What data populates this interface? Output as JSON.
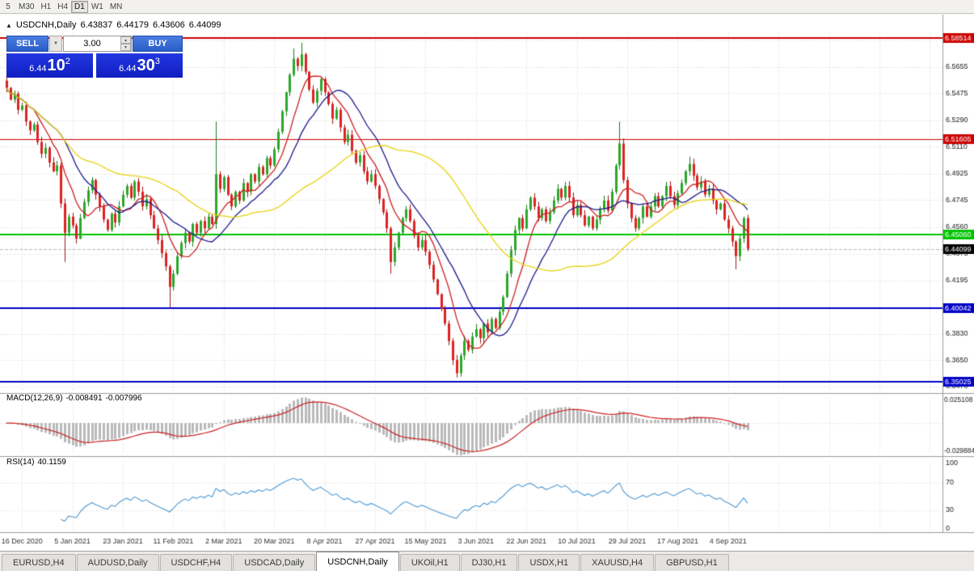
{
  "toolbar": {
    "periods": [
      "5",
      "M30",
      "H1",
      "H4",
      "D1",
      "W1",
      "MN"
    ],
    "active": "D1"
  },
  "chart_header": {
    "collapse_icon": "▲",
    "symbol": "USDCNH,Daily",
    "open": "6.43837",
    "high": "6.44179",
    "low": "6.43606",
    "close": "6.44099"
  },
  "trade_panel": {
    "sell_label": "SELL",
    "buy_label": "BUY",
    "volume": "3.00",
    "dropdown_icon": "▼",
    "spin_up_icon": "▲",
    "spin_down_icon": "▼",
    "sell_price": {
      "base": "6.44",
      "big": "10",
      "sup": "2"
    },
    "buy_price": {
      "base": "6.44",
      "big": "30",
      "sup": "3"
    }
  },
  "indicator_headers": {
    "macd": {
      "name": "MACD(12,26,9)",
      "main": "-0.008491",
      "signal": "-0.007996"
    },
    "rsi": {
      "name": "RSI(14)",
      "value": "40.1159"
    }
  },
  "tabs": {
    "items": [
      "EURUSD,H4",
      "AUDUSD,Daily",
      "USDCHF,H4",
      "USDCAD,Daily",
      "USDCNH,Daily",
      "UKOil,H1",
      "DJ30,H1",
      "USDX,H1",
      "XAUUSD,H4",
      "GBPUSD,H1"
    ],
    "active_index": 4
  },
  "chart_data": {
    "type": "candlestick",
    "symbol": "USDCNH",
    "timeframe": "Daily",
    "y_range": [
      6.3435,
      6.589
    ],
    "y_ticks": [
      "6.5835",
      "6.5655",
      "6.5475",
      "6.5290",
      "6.5110",
      "6.4925",
      "6.4745",
      "6.4560",
      "6.4375",
      "6.4195",
      "6.4010",
      "6.3830",
      "6.3650",
      "6.3470"
    ],
    "x_labels": [
      {
        "text": "16 Dec 2020",
        "bar": 4
      },
      {
        "text": "5 Jan 2021",
        "bar": 17
      },
      {
        "text": "23 Jan 2021",
        "bar": 30
      },
      {
        "text": "11 Feb 2021",
        "bar": 43
      },
      {
        "text": "2 Mar 2021",
        "bar": 56
      },
      {
        "text": "20 Mar 2021",
        "bar": 69
      },
      {
        "text": "8 Apr 2021",
        "bar": 82
      },
      {
        "text": "27 Apr 2021",
        "bar": 95
      },
      {
        "text": "15 May 2021",
        "bar": 108
      },
      {
        "text": "3 Jun 2021",
        "bar": 121
      },
      {
        "text": "22 Jun 2021",
        "bar": 134
      },
      {
        "text": "10 Jul 2021",
        "bar": 147
      },
      {
        "text": "29 Jul 2021",
        "bar": 160
      },
      {
        "text": "17 Aug 2021",
        "bar": 173
      },
      {
        "text": "4 Sep 2021",
        "bar": 186
      }
    ],
    "first_open": 6.556,
    "closes": [
      6.551,
      6.543,
      6.547,
      6.536,
      6.539,
      6.528,
      6.522,
      6.526,
      6.514,
      6.506,
      6.51,
      6.5,
      6.494,
      6.498,
      6.472,
      6.452,
      6.463,
      6.457,
      6.448,
      6.462,
      6.473,
      6.481,
      6.488,
      6.478,
      6.47,
      6.461,
      6.454,
      6.465,
      6.459,
      6.47,
      6.478,
      6.484,
      6.476,
      6.487,
      6.48,
      6.47,
      6.475,
      6.464,
      6.455,
      6.447,
      6.438,
      6.429,
      6.415,
      6.424,
      6.436,
      6.445,
      6.452,
      6.446,
      6.458,
      6.452,
      6.46,
      6.455,
      6.463,
      6.458,
      6.492,
      6.482,
      6.49,
      6.478,
      6.47,
      6.48,
      6.474,
      6.486,
      6.48,
      6.492,
      6.487,
      6.497,
      6.492,
      6.503,
      6.498,
      6.509,
      6.521,
      6.535,
      6.548,
      6.56,
      6.571,
      6.566,
      6.574,
      6.562,
      6.55,
      6.541,
      6.549,
      6.557,
      6.548,
      6.54,
      6.53,
      6.536,
      6.524,
      6.514,
      6.519,
      6.508,
      6.5,
      6.505,
      6.494,
      6.487,
      6.492,
      6.484,
      6.475,
      6.466,
      6.455,
      6.432,
      6.442,
      6.452,
      6.462,
      6.468,
      6.46,
      6.45,
      6.442,
      6.447,
      6.439,
      6.43,
      6.42,
      6.41,
      6.4,
      6.39,
      6.378,
      6.365,
      6.356,
      6.368,
      6.378,
      6.372,
      6.381,
      6.386,
      6.38,
      6.39,
      6.384,
      6.393,
      6.387,
      6.398,
      6.408,
      6.424,
      6.44,
      6.454,
      6.462,
      6.455,
      6.468,
      6.476,
      6.47,
      6.462,
      6.468,
      6.46,
      6.466,
      6.474,
      6.482,
      6.476,
      6.484,
      6.476,
      6.464,
      6.471,
      6.464,
      6.457,
      6.463,
      6.455,
      6.461,
      6.468,
      6.474,
      6.467,
      6.48,
      6.498,
      6.513,
      6.488,
      6.472,
      6.462,
      6.455,
      6.462,
      6.47,
      6.463,
      6.47,
      6.477,
      6.47,
      6.477,
      6.484,
      6.477,
      6.471,
      6.479,
      6.486,
      6.494,
      6.499,
      6.491,
      6.483,
      6.487,
      6.478,
      6.482,
      6.474,
      6.468,
      6.472,
      6.461,
      6.455,
      6.446,
      6.436,
      6.448,
      6.462,
      6.441
    ],
    "wick_overrides": {
      "highs": {
        "54": 6.528,
        "74": 6.578,
        "76": 6.582,
        "158": 6.528,
        "176": 6.504
      },
      "lows": {
        "15": 6.432,
        "42": 6.401,
        "99": 6.424,
        "116": 6.353,
        "188": 6.427
      }
    },
    "moving_averages": [
      {
        "period": 8,
        "color_key": "ma_fast"
      },
      {
        "period": 16,
        "color_key": "ma_mid"
      },
      {
        "period": 45,
        "color_key": "ma_slow"
      }
    ],
    "hlines": [
      {
        "price": 6.58514,
        "label": "6.58514",
        "color": "#cc0000",
        "width": 2
      },
      {
        "price": 6.51605,
        "label": "6.51605",
        "color": "#cc0000",
        "width": 1
      },
      {
        "price": 6.4506,
        "label": "6.45060",
        "color": "#00c400",
        "width": 2
      },
      {
        "price": 6.40042,
        "label": "6.40042",
        "color": "#0000c8",
        "width": 2
      },
      {
        "price": 6.35025,
        "label": "6.35025",
        "color": "#0000c8",
        "width": 2
      }
    ],
    "bid": {
      "price": 6.44099,
      "label": "6.44099"
    },
    "macd": {
      "fast": 12,
      "slow": 26,
      "signal": 9,
      "range": [
        -0.029884,
        0.025108
      ],
      "axis_labels": [
        "0.025108",
        "-0.029884"
      ]
    },
    "rsi": {
      "period": 14,
      "levels": [
        70,
        30
      ],
      "range": [
        0,
        100
      ],
      "axis_labels": [
        "100",
        "70",
        "30",
        "0"
      ]
    },
    "colors": {
      "background": "#ffffff",
      "grid": "#d8d8d8",
      "separator": "#9a9a9a",
      "axis_text": "#1a1a1a",
      "bid_tag": "#000000",
      "up": "#1d7a1d",
      "up_fill": "#2aa82a",
      "down": "#a01616",
      "down_fill": "#dd2222",
      "ma_fast": "#cc2020",
      "ma_mid": "#1a1a8c",
      "ma_slow": "#e8d411",
      "histogram": "#b9b9b9",
      "macd_signal": "#cc2222",
      "rsi_line": "#4e9ad4"
    }
  }
}
